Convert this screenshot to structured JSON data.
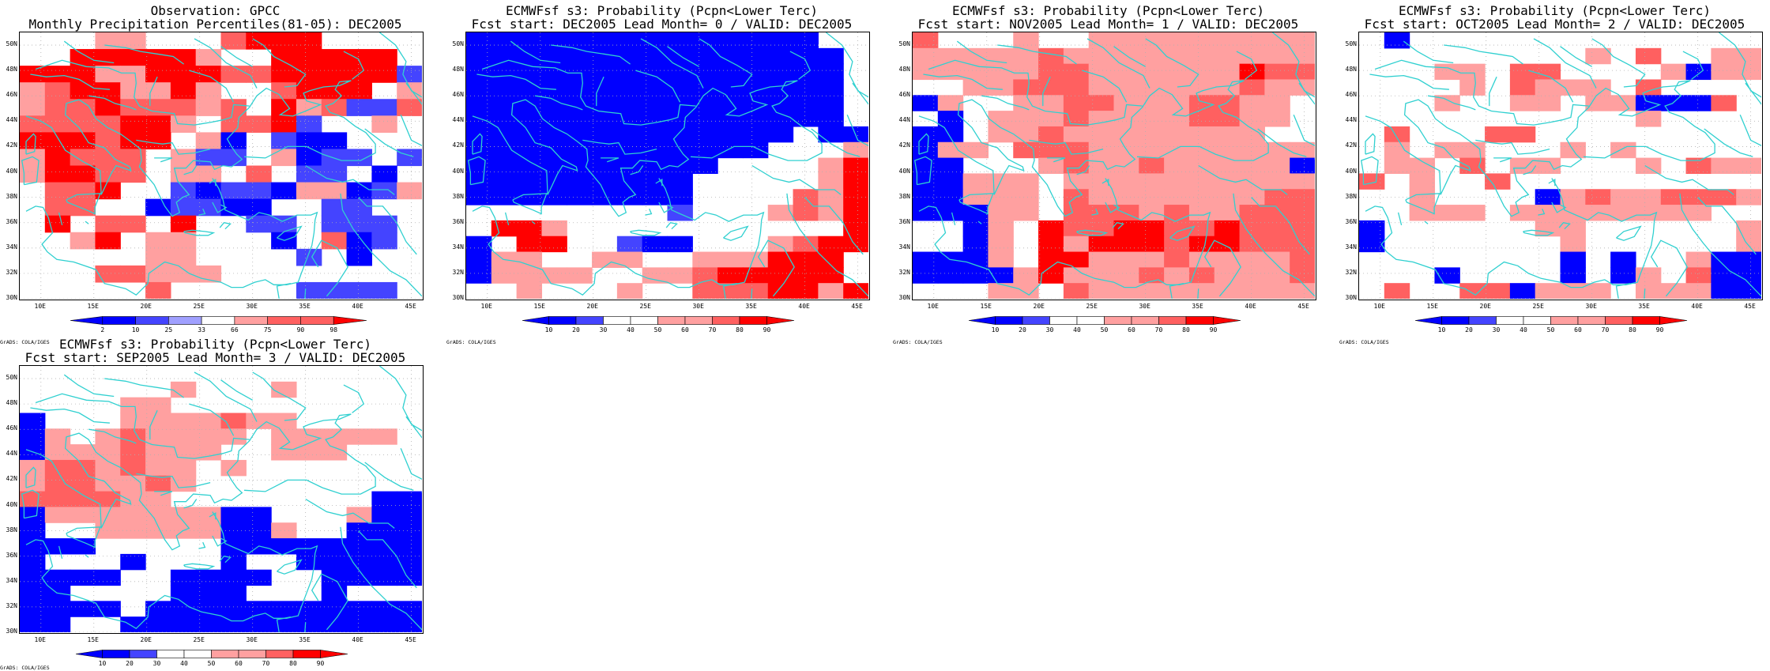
{
  "colors": {
    "blue_dark": "#0000ff",
    "blue_mid": "#4444ff",
    "blue_light": "#a0a0ff",
    "red_light": "#ffa0a0",
    "red_mid": "#ff6060",
    "red_dark": "#ff0000",
    "coast": "#30d0d0",
    "grid": "#b0b0b0"
  },
  "axes": {
    "x_labels": [
      "10E",
      "15E",
      "20E",
      "25E",
      "30E",
      "35E",
      "40E",
      "45E"
    ],
    "y_labels": [
      "50N",
      "48N",
      "46N",
      "44N",
      "42N",
      "40N",
      "38N",
      "36N",
      "34N",
      "32N",
      "30N"
    ],
    "lon_range": [
      8,
      46
    ],
    "lat_range": [
      30,
      51
    ]
  },
  "panels": [
    {
      "title1": "Observation: GPCC",
      "title2": "Monthly Precipitation Percentiles(81-05): DEC2005",
      "bar_labels": [
        "2",
        "10",
        "25",
        "33",
        "66",
        "75",
        "90",
        "98"
      ],
      "grads": "GrADS: COLA/IGES",
      "grid": [
        "...ww...nsss....",
        "..sssssw..sssss.",
        "ssswwsssnnsssssb",
        "wnsswwsw..nsss.w",
        "wnnsnnnwn.swnbbn",
        "nnnnssw.nnsb..w.",
        "sssnss.wB.bBB...",
        "wsnnn.wbb.wBbb.b",
        "wssnn.ww.n.bb.B.",
        ".nns..bBbbBwwBbw",
        ".nn..BbbBB..bb..",
        ".s.nn.s..bb.bbb.",
        "..ws.ww...B.nBb.",
        ".....ww....b.B..",
        "...nnwww........",
        ".....n.....bbbb."
      ]
    },
    {
      "title1": "ECMWFsf s3: Probability (Pcpn<Lower Terc)",
      "title2": "Fcst start: DEC2005  Lead Month= 0 / VALID: DEC2005",
      "bar_labels": [
        "10",
        "20",
        "30",
        "40",
        "50",
        "60",
        "70",
        "80",
        "90"
      ],
      "grads": "GrADS: COLA/IGES",
      "grid": [
        "BBBBBBBBBBBBBB..",
        "BBBBBBBBBBBBBBB.",
        "BBBBBBBBBBBBBBB.",
        "BBBBBBBBBBBBBBB.",
        "BBBBBBBBBBBBBBB.",
        "BBBBBBBBBBBBBBB.",
        "BBBBBBBBBBBBB.BB",
        "BBBBBBBBBBBB...w",
        "BBBBBBBBBB....ws",
        "BBBBBBBBB.....ws",
        "BBBBBBBBB....nws",
        "........m...wnws",
        ".ssw...........s",
        "B.ss..mBB...wnss",
        "Bww..ww..wwwsss.",
        "Bwwww..wwnsssss.",
        "..w...w..nnnssws"
      ]
    },
    {
      "title1": "ECMWFsf s3: Probability (Pcpn<Lower Terc)",
      "title2": "Fcst start: NOV2005  Lead Month= 1 / VALID: DEC2005",
      "bar_labels": [
        "10",
        "20",
        "30",
        "40",
        "50",
        "60",
        "70",
        "80",
        "90"
      ],
      "grads": "GrADS: COLA/IGES",
      "grid": [
        "n...w..wwwwwwwww",
        "wwwwwnwwwwwwwwww",
        "wwwwwnnwwwwwwsnn",
        "..wwnnnwwwwwwnww",
        "Bw..wwnnwwwnnww.",
        ".B.wwwnwwwwnnww.",
        "BB.wwnwwwwwwww..",
        "Bww.nnnwwwwwwwww",
        "BB...wnwwnwwwwwB",
        "BBwww.wwwwwwwwww",
        "BBwww.nwwwwwwwnn",
        "BBBww.nnnwnwwnnn",
        "..Bw.snnssnnsnnn",
        "..Bw.swsssnssnnn",
        "BBBw.sswwwnwwwwn",
        "BBBBwswwwnwnwwwn",
        "...ww.nwwwwwwwww"
      ]
    },
    {
      "title1": "ECMWFsf s3: Probability (Pcpn<Lower Terc)",
      "title2": "Fcst start: OCT2005  Lead Month= 2 / VALID: DEC2005",
      "bar_labels": [
        "10",
        "20",
        "30",
        "40",
        "50",
        "60",
        "70",
        "80",
        "90"
      ],
      "grads": "GrADS: COLA/IGES",
      "grid": [
        ".B..............",
        ".........w.n..ww",
        "...ww.nn....wBww",
        "....w.nwww.n....",
        "...w..ww.wwBBBn.",
        "...........w....",
        ".n...nn.........",
        ".w.ww...w.w.....",
        ".ww.n.ww...w.nww",
        "n.w..n..........",
        "..w....Bwnwwnnnw",
        "..www.wwwwwwww..",
        "B......ww......w",
        "B.......w......w",
        "........B.B..wBB",
        "...B....B.Bw.nBB",
        ".n..nnBwww.wwwBB"
      ]
    },
    {
      "title1": "ECMWFsf s3: Probability (Pcpn<Lower Terc)",
      "title2": "Fcst start: SEP2005  Lead Month= 3 / VALID: DEC2005",
      "bar_labels": [
        "10",
        "20",
        "30",
        "40",
        "50",
        "60",
        "70",
        "80",
        "90"
      ],
      "grads": "GrADS: COLA/IGES",
      "grid": [
        "................",
        "......w...w.....",
        "....ww..........",
        "B...wwwwnww.....",
        "Bw.wnwwww.wwwww.",
        "Bwwwnwww..www...",
        "wnnwnww.w.......",
        "wnnwwnw.........",
        "nnnnww........BB",
        "BwwwwwwwBB...wBB",
        "B..wwwwwBBw..BBB",
        "BBB.....BBBBBBBB",
        "B...B...B..BBBBB",
        "BBBB..BBBB..BBBB",
        "BB....BBB...B...",
        "BBBB.BBBBBBBBBBB",
        "BB..BBBBBBBBBBBB"
      ]
    }
  ]
}
